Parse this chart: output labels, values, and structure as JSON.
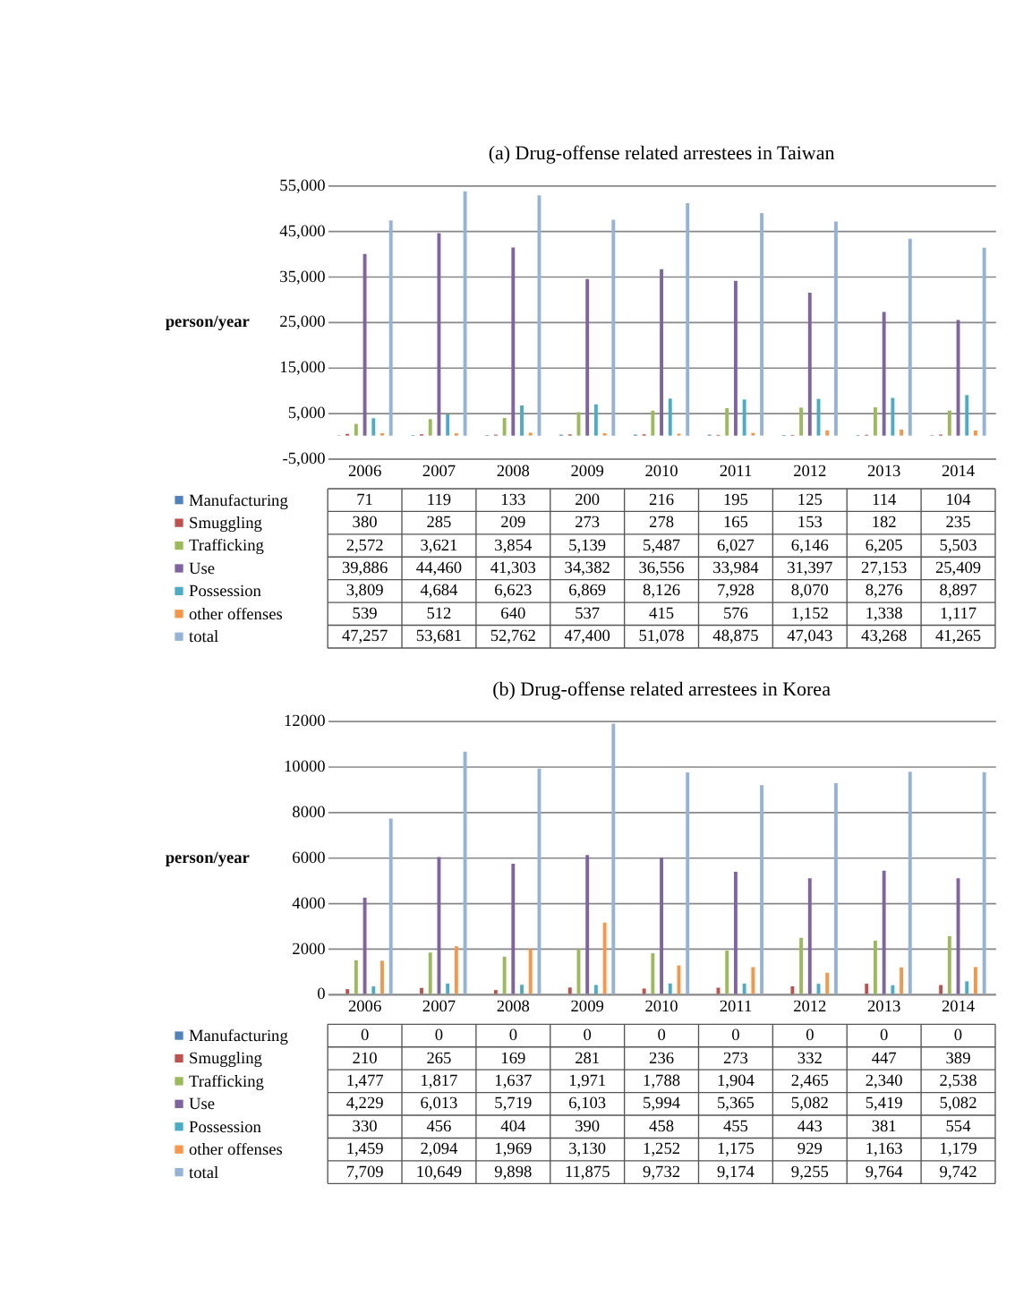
{
  "chart_data": [
    {
      "type": "bar",
      "title": "(a) Drug-offense related arrestees in Taiwan",
      "ylabel": "person/year",
      "categories": [
        "2006",
        "2007",
        "2008",
        "2009",
        "2010",
        "2011",
        "2012",
        "2013",
        "2014"
      ],
      "series": [
        {
          "name": "Manufacturing",
          "color": "#4f81bd",
          "values": [
            71,
            119,
            133,
            200,
            216,
            195,
            125,
            114,
            104
          ],
          "value_labels": [
            "71",
            "119",
            "133",
            "200",
            "216",
            "195",
            "125",
            "114",
            "104"
          ]
        },
        {
          "name": "Smuggling",
          "color": "#c0504d",
          "values": [
            380,
            285,
            209,
            273,
            278,
            165,
            153,
            182,
            235
          ],
          "value_labels": [
            "380",
            "285",
            "209",
            "273",
            "278",
            "165",
            "153",
            "182",
            "235"
          ]
        },
        {
          "name": "Trafficking",
          "color": "#9bbb59",
          "values": [
            2572,
            3621,
            3854,
            5139,
            5487,
            6027,
            6146,
            6205,
            5503
          ],
          "value_labels": [
            "2,572",
            "3,621",
            "3,854",
            "5,139",
            "5,487",
            "6,027",
            "6,146",
            "6,205",
            "5,503"
          ]
        },
        {
          "name": "Use",
          "color": "#8064a2",
          "values": [
            39886,
            44460,
            41303,
            34382,
            36556,
            33984,
            31397,
            27153,
            25409
          ],
          "value_labels": [
            "39,886",
            "44,460",
            "41,303",
            "34,382",
            "36,556",
            "33,984",
            "31,397",
            "27,153",
            "25,409"
          ]
        },
        {
          "name": "Possession",
          "color": "#4bacc6",
          "values": [
            3809,
            4684,
            6623,
            6869,
            8126,
            7928,
            8070,
            8276,
            8897
          ],
          "value_labels": [
            "3,809",
            "4,684",
            "6,623",
            "6,869",
            "8,126",
            "7,928",
            "8,070",
            "8,276",
            "8,897"
          ]
        },
        {
          "name": "other offenses",
          "color": "#f79646",
          "values": [
            539,
            512,
            640,
            537,
            415,
            576,
            1152,
            1338,
            1117
          ],
          "value_labels": [
            "539",
            "512",
            "640",
            "537",
            "415",
            "576",
            "1,152",
            "1,338",
            "1,117"
          ]
        },
        {
          "name": "total",
          "color": "#95b3d7",
          "values": [
            47257,
            53681,
            52762,
            47400,
            51078,
            48875,
            47043,
            43268,
            41265
          ],
          "value_labels": [
            "47,257",
            "53,681",
            "52,762",
            "47,400",
            "51,078",
            "48,875",
            "47,043",
            "43,268",
            "41,265"
          ]
        }
      ],
      "ylim": [
        -5000,
        55000
      ],
      "yticks": [
        {
          "value": -5000,
          "label": "-5,000"
        },
        {
          "value": 5000,
          "label": "5,000"
        },
        {
          "value": 15000,
          "label": "15,000"
        },
        {
          "value": 25000,
          "label": "25,000"
        },
        {
          "value": 35000,
          "label": "35,000"
        },
        {
          "value": 45000,
          "label": "45,000"
        },
        {
          "value": 55000,
          "label": "55,000"
        }
      ],
      "grid": "y",
      "legend": "bottom"
    },
    {
      "type": "bar",
      "title": "(b) Drug-offense related arrestees in Korea",
      "ylabel": "person/year",
      "categories": [
        "2006",
        "2007",
        "2008",
        "2009",
        "2010",
        "2011",
        "2012",
        "2013",
        "2014"
      ],
      "series": [
        {
          "name": "Manufacturing",
          "color": "#4f81bd",
          "values": [
            0,
            0,
            0,
            0,
            0,
            0,
            0,
            0,
            0
          ],
          "value_labels": [
            "0",
            "0",
            "0",
            "0",
            "0",
            "0",
            "0",
            "0",
            "0"
          ]
        },
        {
          "name": "Smuggling",
          "color": "#c0504d",
          "values": [
            210,
            265,
            169,
            281,
            236,
            273,
            332,
            447,
            389
          ],
          "value_labels": [
            "210",
            "265",
            "169",
            "281",
            "236",
            "273",
            "332",
            "447",
            "389"
          ]
        },
        {
          "name": "Trafficking",
          "color": "#9bbb59",
          "values": [
            1477,
            1817,
            1637,
            1971,
            1788,
            1904,
            2465,
            2340,
            2538
          ],
          "value_labels": [
            "1,477",
            "1,817",
            "1,637",
            "1,971",
            "1,788",
            "1,904",
            "2,465",
            "2,340",
            "2,538"
          ]
        },
        {
          "name": "Use",
          "color": "#8064a2",
          "values": [
            4229,
            6013,
            5719,
            6103,
            5994,
            5365,
            5082,
            5419,
            5082
          ],
          "value_labels": [
            "4,229",
            "6,013",
            "5,719",
            "6,103",
            "5,994",
            "5,365",
            "5,082",
            "5,419",
            "5,082"
          ]
        },
        {
          "name": "Possession",
          "color": "#4bacc6",
          "values": [
            330,
            456,
            404,
            390,
            458,
            455,
            443,
            381,
            554
          ],
          "value_labels": [
            "330",
            "456",
            "404",
            "390",
            "458",
            "455",
            "443",
            "381",
            "554"
          ]
        },
        {
          "name": "other offenses",
          "color": "#f79646",
          "values": [
            1459,
            2094,
            1969,
            3130,
            1252,
            1175,
            929,
            1163,
            1179
          ],
          "value_labels": [
            "1,459",
            "2,094",
            "1,969",
            "3,130",
            "1,252",
            "1,175",
            "929",
            "1,163",
            "1,179"
          ]
        },
        {
          "name": "total",
          "color": "#95b3d7",
          "values": [
            7709,
            10649,
            9898,
            11875,
            9732,
            9174,
            9255,
            9764,
            9742
          ],
          "value_labels": [
            "7,709",
            "10,649",
            "9,898",
            "11,875",
            "9,732",
            "9,174",
            "9,255",
            "9,764",
            "9,742"
          ]
        }
      ],
      "ylim": [
        0,
        12000
      ],
      "yticks": [
        0,
        2000,
        4000,
        6000,
        8000,
        10000,
        12000
      ],
      "grid": "y",
      "legend": "bottom"
    }
  ]
}
